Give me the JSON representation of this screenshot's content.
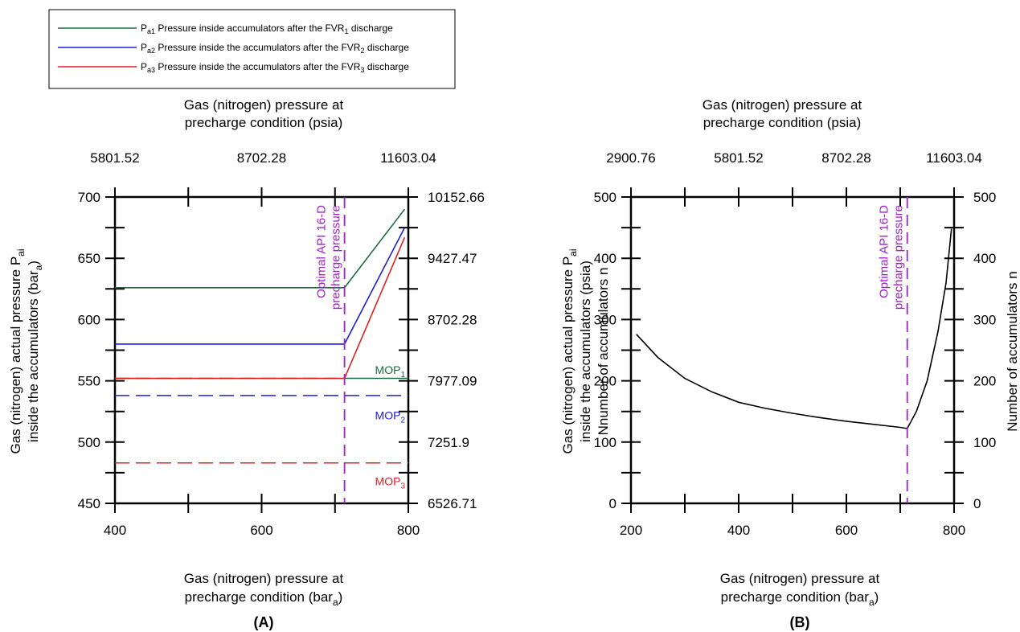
{
  "legend": [
    {
      "base": "P",
      "sub": "a1",
      "text": " Pressure inside accumulators after the FVR",
      "sub2": "1",
      "tail": " discharge",
      "color": "#1a6b3a"
    },
    {
      "base": "P",
      "sub": "a2",
      "text": " Pressure inside the accumulators after the FVR",
      "sub2": "2",
      "tail": " discharge",
      "color": "#1f1fd6"
    },
    {
      "base": "P",
      "sub": "a3",
      "text": " Pressure inside the accumulators after the FVR",
      "sub2": "3",
      "tail": " discharge",
      "color": "#e02020"
    }
  ],
  "chart_data": [
    {
      "panel": "(A)",
      "type": "line",
      "xlabel_line1": "Gas (nitrogen) pressure at",
      "xlabel_line2": "precharge condition (bar",
      "xlabel_sub": "a",
      "xlabel_close": ")",
      "x_top_label_line1": "Gas (nitrogen) pressure at",
      "x_top_label_line2": "precharge condition (psia)",
      "ylabel_line1": "Gas (nitrogen) actual pressure P",
      "ylabel_line1_sub": "ai",
      "ylabel_line2": "inside the accumulators (bar",
      "ylabel_line2_sub": "a",
      "ylabel_line2_close": ")",
      "y_right_label_line1": "Gas (nitrogen) actual pressure P",
      "y_right_label_line1_sub": "ai",
      "y_right_label_line2": "inside the accumulators (psia)",
      "xlim": [
        400,
        800
      ],
      "ylim": [
        450,
        700
      ],
      "x_ticks": [
        "400",
        "600",
        "800"
      ],
      "x_tick_values": [
        400,
        600,
        800
      ],
      "y_ticks": [
        "450",
        "500",
        "550",
        "600",
        "650",
        "700"
      ],
      "y_tick_values": [
        450,
        500,
        550,
        600,
        650,
        700
      ],
      "x_top_ticks": [
        "5801.52",
        "8702.28",
        "11603.04"
      ],
      "x_top_tick_values": [
        400,
        600,
        800
      ],
      "y_right_ticks": [
        "6526.71",
        "7251.9",
        "7977.09",
        "8702.28",
        "9427.47",
        "10152.66"
      ],
      "y_right_tick_values": [
        450,
        500,
        550,
        600,
        650,
        700
      ],
      "series": [
        {
          "name": "Pa1",
          "color": "#1a6b3a",
          "x": [
            400,
            713,
            795
          ],
          "y": [
            626,
            626,
            690
          ]
        },
        {
          "name": "Pa2",
          "color": "#1f1fd6",
          "x": [
            400,
            713,
            795
          ],
          "y": [
            580,
            580,
            675
          ]
        },
        {
          "name": "Pa3",
          "color": "#e02020",
          "x": [
            400,
            713,
            795
          ],
          "y": [
            552,
            552,
            667
          ]
        }
      ],
      "mop_lines": [
        {
          "base": "MOP",
          "sub": "1",
          "y": 552,
          "x": [
            400,
            750
          ],
          "tail_x": [
            713,
            800
          ],
          "color": "#1a6b3a",
          "label_y": 559
        },
        {
          "base": "MOP",
          "sub": "2",
          "y": 538,
          "x": [
            400,
            800
          ],
          "color": "#1f1fd6",
          "label_y": 522
        },
        {
          "base": "MOP",
          "sub": "3",
          "y": 483,
          "x": [
            400,
            800
          ],
          "color": "#e02020",
          "label_y": 468
        }
      ],
      "vline": {
        "x": 713,
        "color": "#a020c8",
        "label_line1": "Optimal API 16-D",
        "label_line2": "precharge pressure"
      }
    },
    {
      "panel": "(B)",
      "type": "line",
      "xlabel_line1": "Gas (nitrogen) pressure at",
      "xlabel_line2": "precharge condition (bar",
      "xlabel_sub": "a",
      "xlabel_close": ")",
      "x_top_label_line1": "Gas (nitrogen) pressure at",
      "x_top_label_line2": "precharge condition (psia)",
      "ylabel": "Nnumber of accumulators n",
      "y_right_label": "Number of accumulators n",
      "xlim": [
        200,
        800
      ],
      "ylim": [
        0,
        500
      ],
      "x_ticks": [
        "200",
        "400",
        "600",
        "800"
      ],
      "x_tick_values": [
        200,
        400,
        600,
        800
      ],
      "y_ticks": [
        "0",
        "100",
        "200",
        "300",
        "400",
        "500"
      ],
      "y_tick_values": [
        0,
        100,
        200,
        300,
        400,
        500
      ],
      "x_top_ticks": [
        "2900.76",
        "5801.52",
        "8702.28",
        "11603.04"
      ],
      "x_top_tick_values": [
        200,
        400,
        600,
        800
      ],
      "y_right_ticks": [
        "0",
        "100",
        "200",
        "300",
        "400",
        "500"
      ],
      "y_right_tick_values": [
        0,
        100,
        200,
        300,
        400,
        500
      ],
      "series": [
        {
          "color": "#000000",
          "x": [
            210,
            250,
            300,
            350,
            400,
            450,
            500,
            550,
            600,
            650,
            700,
            713,
            730,
            750,
            770,
            785,
            795
          ],
          "y": [
            276,
            238,
            204,
            182,
            165,
            155,
            147,
            140,
            134,
            129,
            124,
            122,
            150,
            200,
            280,
            360,
            448
          ]
        }
      ],
      "vline": {
        "x": 713,
        "color": "#a020c8",
        "label_line1": "Optimal API 16-D",
        "label_line2": "precharge pressure"
      }
    }
  ]
}
